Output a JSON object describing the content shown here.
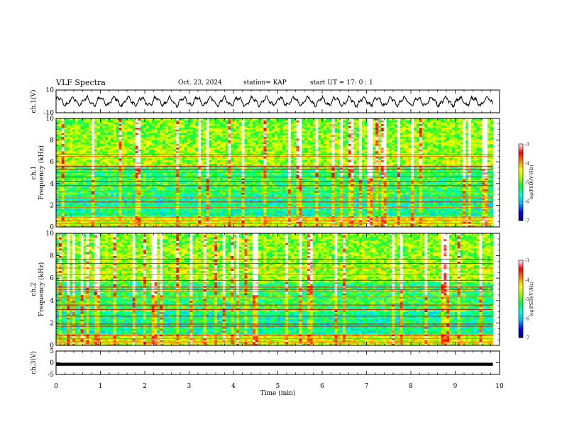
{
  "header": {
    "title": "VLF Spectra",
    "date": "Oct. 23, 2024",
    "station": "station= KAP",
    "start": "start  UT =   17: 0  : 1"
  },
  "chart_data": [
    {
      "type": "line",
      "name": "ch1-waveform",
      "ylabel": "ch.1(V)",
      "ylim": [
        -10,
        10
      ],
      "y_ticks": [
        "10",
        "-10"
      ],
      "xlim": [
        0,
        10
      ],
      "data_extent_x": [
        0,
        9.85
      ],
      "level_range": [
        -5,
        5
      ]
    },
    {
      "type": "heatmap",
      "name": "ch1-spectrogram",
      "ylabel": "Frequency (kHz)",
      "channel_label": "ch.1",
      "ylim": [
        0,
        10
      ],
      "y_ticks": [
        "0",
        "2",
        "4",
        "6",
        "8",
        "10"
      ],
      "xlim": [
        0,
        10
      ],
      "data_extent_x": [
        0,
        9.85
      ],
      "colorbar": {
        "label": "log(PSD)(V²/Hz)",
        "range": [
          -7,
          -3
        ],
        "ticks": [
          "-3",
          "-4",
          "-5",
          "-6",
          "-7"
        ]
      },
      "lines_khz": [
        0.3,
        0.6,
        0.9,
        1.2,
        1.8,
        2.3,
        2.7,
        3.3,
        3.8,
        4.2,
        4.6,
        5.0,
        5.3,
        5.6,
        6.5,
        6.7
      ]
    },
    {
      "type": "heatmap",
      "name": "ch2-spectrogram",
      "ylabel": "Frequency (kHz)",
      "channel_label": "ch.2",
      "ylim": [
        0,
        10
      ],
      "y_ticks": [
        "0",
        "2",
        "4",
        "6",
        "8",
        "10"
      ],
      "xlim": [
        0,
        10
      ],
      "data_extent_x": [
        0,
        9.85
      ],
      "colorbar": {
        "label": "log(PSD)(V²/Hz)",
        "range": [
          -7,
          -3
        ],
        "ticks": [
          "-3",
          "-4",
          "-5",
          "-6",
          "-7"
        ]
      },
      "lines_khz": [
        0.3,
        0.6,
        0.9,
        1.7,
        1.9,
        2.6,
        3.2,
        3.6,
        4.3,
        4.8,
        5.0,
        5.2,
        5.8,
        6.3,
        6.9,
        7.3,
        7.7
      ]
    },
    {
      "type": "line",
      "name": "ch3-level",
      "ylabel": "ch.3(V)",
      "ylim": [
        -5,
        5
      ],
      "y_ticks": [
        "5",
        "0",
        "-5"
      ],
      "xlim": [
        0,
        10
      ],
      "data_extent_x": [
        0,
        9.85
      ],
      "band_v": [
        -1.3,
        0.0
      ],
      "xlabel": "Time  (min)",
      "x_ticks": [
        "0",
        "1",
        "2",
        "3",
        "4",
        "5",
        "6",
        "7",
        "8",
        "9",
        "10"
      ]
    }
  ],
  "colors": {
    "axis": "#000000",
    "trace": "#000000",
    "colormap": [
      "#000080",
      "#0000ff",
      "#00b4ff",
      "#00ffe0",
      "#00ff40",
      "#a0ff00",
      "#ffff00",
      "#ff8000",
      "#ff0000",
      "#ffffff"
    ]
  }
}
